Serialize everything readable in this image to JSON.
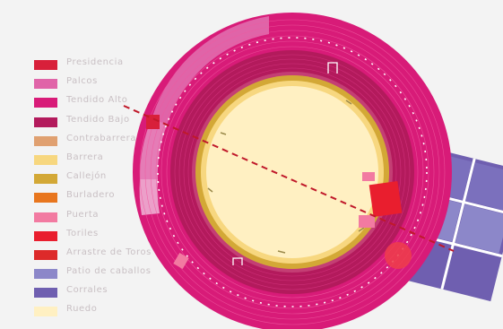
{
  "legend": [
    {
      "label": "Presidencia",
      "color": "#d8203a"
    },
    {
      "label": "Palcos",
      "color": "#e064a8"
    },
    {
      "label": "Tendido Alto",
      "color": "#d81b78"
    },
    {
      "label": "Tendido Bajo",
      "color": "#b31a5c"
    },
    {
      "label": "Contrabarrera",
      "color": "#e0a070"
    },
    {
      "label": "Barrera",
      "color": "#f7d77f"
    },
    {
      "label": "Callejón",
      "color": "#d3a836"
    },
    {
      "label": "Burladero",
      "color": "#e8761e"
    },
    {
      "label": "Puerta",
      "color": "#f27aa1"
    },
    {
      "label": "Toriles",
      "color": "#e91e2e"
    },
    {
      "label": "Arrastre de Toros",
      "color": "#dd2a2a"
    },
    {
      "label": "Patio de caballos",
      "color": "#8c87c9"
    },
    {
      "label": "Corrales",
      "color": "#6f5fb0"
    },
    {
      "label": "Ruedo",
      "color": "#fff0c2"
    }
  ]
}
